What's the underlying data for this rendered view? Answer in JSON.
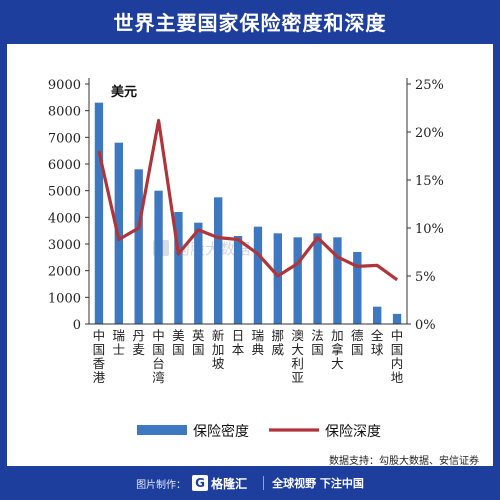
{
  "title": "世界主要国家保险密度和深度",
  "unit_label": "美元",
  "source_text": "数据支持：勾股大数据、安信证券",
  "watermark_text": "勾股大数据",
  "footer": {
    "made_by": "图片制作：",
    "logo_text": "格隆汇",
    "slogan": "全球视野 下注中国"
  },
  "colors": {
    "background": "#1e3e9e",
    "bar": "#3d78c0",
    "line": "#b0353a"
  },
  "chart_data": {
    "type": "bar",
    "categories": [
      "中国香港",
      "瑞士",
      "丹麦",
      "中国台湾",
      "美国",
      "英国",
      "新加坡",
      "日本",
      "瑞典",
      "挪威",
      "澳大利亚",
      "法国",
      "加拿大",
      "德国",
      "全球",
      "中国内地"
    ],
    "series": [
      {
        "name": "保险密度",
        "type": "bar",
        "axis": "left",
        "values": [
          8300,
          6800,
          5800,
          5000,
          4200,
          3800,
          4750,
          3300,
          3650,
          3400,
          3250,
          3400,
          3250,
          2700,
          650,
          380
        ]
      },
      {
        "name": "保险深度",
        "type": "line",
        "axis": "right",
        "values": [
          18.0,
          8.8,
          10.0,
          21.2,
          7.3,
          9.8,
          9.0,
          8.8,
          7.3,
          5.0,
          6.3,
          9.0,
          7.0,
          6.0,
          6.1,
          4.6
        ]
      }
    ],
    "yaxis_left": {
      "min": 0,
      "max": 9000,
      "ticks": [
        "0",
        "1000",
        "2000",
        "3000",
        "4000",
        "5000",
        "6000",
        "7000",
        "8000",
        "9000"
      ]
    },
    "yaxis_right": {
      "min": 0,
      "max": 25,
      "ticks": [
        "0%",
        "5%",
        "10%",
        "15%",
        "20%",
        "25%"
      ]
    },
    "legend": {
      "placement": "bottom",
      "entries": [
        "保险密度",
        "保险深度"
      ]
    }
  }
}
